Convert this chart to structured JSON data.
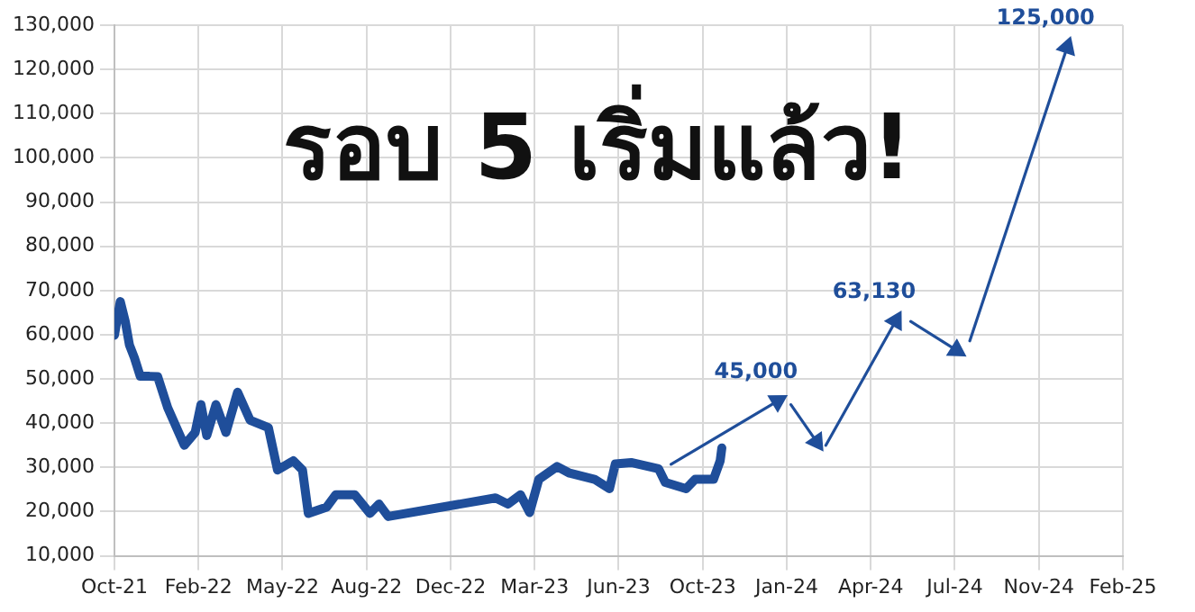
{
  "chart_data": {
    "type": "line",
    "title": "รอบ 5 เริ่มแล้ว!",
    "xlim": [
      "2021-10-25",
      "2025-02-18"
    ],
    "xticks": [
      {
        "value": "2021-10-25",
        "label": "Oct-21"
      },
      {
        "value": "2022-02-03",
        "label": "Feb-22"
      },
      {
        "value": "2022-05-15",
        "label": "May-22"
      },
      {
        "value": "2022-08-24",
        "label": "Aug-22"
      },
      {
        "value": "2022-12-03",
        "label": "Dec-22"
      },
      {
        "value": "2023-03-14",
        "label": "Mar-23"
      },
      {
        "value": "2023-06-23",
        "label": "Jun-23"
      },
      {
        "value": "2023-10-02",
        "label": "Oct-23"
      },
      {
        "value": "2024-01-11",
        "label": "Jan-24"
      },
      {
        "value": "2024-04-21",
        "label": "Apr-24"
      },
      {
        "value": "2024-07-31",
        "label": "Jul-24"
      },
      {
        "value": "2024-11-09",
        "label": "Nov-24"
      },
      {
        "value": "2025-02-18",
        "label": "Feb-25"
      }
    ],
    "ylim": [
      10000,
      130000
    ],
    "yticks": [
      {
        "value": 10000,
        "label": "10,000"
      },
      {
        "value": 20000,
        "label": "20,000"
      },
      {
        "value": 30000,
        "label": "30,000"
      },
      {
        "value": 40000,
        "label": "40,000"
      },
      {
        "value": 50000,
        "label": "50,000"
      },
      {
        "value": 60000,
        "label": "60,000"
      },
      {
        "value": 70000,
        "label": "70,000"
      },
      {
        "value": 80000,
        "label": "80,000"
      },
      {
        "value": 90000,
        "label": "90,000"
      },
      {
        "value": 100000,
        "label": "100,000"
      },
      {
        "value": 110000,
        "label": "110,000"
      },
      {
        "value": 120000,
        "label": "120,000"
      },
      {
        "value": 130000,
        "label": "130,000"
      }
    ],
    "grid": true,
    "legend": false,
    "marker": "none",
    "series": [
      {
        "color": "#1f4e9a",
        "x": [
          "2021-10-25",
          "2021-11-01",
          "2021-11-07",
          "2021-11-12",
          "2021-11-18",
          "2021-11-25",
          "2021-12-06",
          "2021-12-16",
          "2021-12-28",
          "2022-01-17",
          "2022-01-30",
          "2022-02-06",
          "2022-02-13",
          "2022-02-24",
          "2022-03-08",
          "2022-03-22",
          "2022-04-06",
          "2022-04-28",
          "2022-05-09",
          "2022-05-28",
          "2022-06-08",
          "2022-06-15",
          "2022-07-07",
          "2022-07-18",
          "2022-08-10",
          "2022-08-28",
          "2022-09-08",
          "2022-09-19",
          "2023-01-26",
          "2023-02-10",
          "2023-02-25",
          "2023-03-08",
          "2023-03-19",
          "2023-04-10",
          "2023-04-25",
          "2023-05-25",
          "2023-06-12",
          "2023-06-19",
          "2023-07-08",
          "2023-08-10",
          "2023-08-18",
          "2023-09-12",
          "2023-09-23",
          "2023-10-15",
          "2023-10-23",
          "2023-10-25"
        ],
        "values": [
          59900,
          67500,
          63000,
          57700,
          54800,
          50600,
          50600,
          50500,
          43500,
          35000,
          37900,
          44200,
          37200,
          44200,
          37900,
          47000,
          40700,
          39000,
          29400,
          31500,
          29400,
          19600,
          21000,
          23800,
          23800,
          19600,
          21700,
          18900,
          23100,
          21700,
          23800,
          19800,
          27300,
          30200,
          28700,
          27300,
          25200,
          30800,
          31100,
          29700,
          26600,
          25200,
          27300,
          27300,
          31500,
          34400
        ]
      },
      {
        "color": "#1f4e9a",
        "line_style": "solid",
        "marker": "triangle",
        "x": [
          "2023-08-25",
          "2023-12-31",
          "2024-01-01",
          "2024-01-16",
          "2024-02-16",
          "2024-02-20",
          "2024-02-27",
          "2024-05-21",
          "2024-05-30",
          "2024-06-08",
          "2024-08-02",
          "2024-08-10",
          "2024-08-18",
          "2024-12-13"
        ],
        "values": [
          30700,
          45000,
          null,
          44200,
          35800,
          null,
          35000,
          63130,
          null,
          63000,
          56500,
          null,
          58600,
          125000
        ],
        "value_labels": [
          null,
          "45,000",
          null,
          null,
          null,
          null,
          null,
          "63,130",
          null,
          null,
          null,
          null,
          null,
          "125,000"
        ]
      }
    ]
  }
}
